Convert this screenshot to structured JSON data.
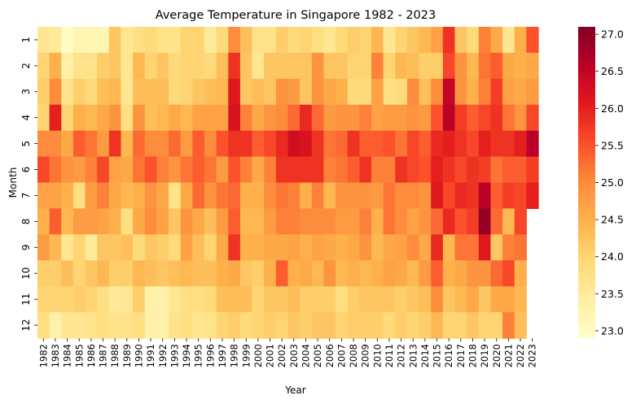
{
  "chart_data": {
    "type": "heatmap",
    "title": "Average Temperature in Singapore 1982 - 2023",
    "xlabel": "Year",
    "ylabel": "Month",
    "x": [
      "1982",
      "1983",
      "1984",
      "1985",
      "1986",
      "1987",
      "1988",
      "1989",
      "1990",
      "1991",
      "1992",
      "1993",
      "1994",
      "1995",
      "1996",
      "1997",
      "1998",
      "1999",
      "2000",
      "2001",
      "2002",
      "2003",
      "2004",
      "2005",
      "2006",
      "2007",
      "2008",
      "2009",
      "2010",
      "2011",
      "2012",
      "2013",
      "2014",
      "2015",
      "2016",
      "2017",
      "2018",
      "2019",
      "2020",
      "2021",
      "2022",
      "2023"
    ],
    "y": [
      "1",
      "2",
      "3",
      "4",
      "5",
      "6",
      "7",
      "8",
      "9",
      "10",
      "11",
      "12"
    ],
    "colorbar": {
      "min": 22.9,
      "max": 27.1,
      "ticks": [
        "23.0",
        "23.5",
        "24.0",
        "24.5",
        "25.0",
        "25.5",
        "26.0",
        "26.5",
        "27.0"
      ],
      "colormap": "YlOrRd",
      "colors": [
        "#ffffcc",
        "#ffeda0",
        "#fed976",
        "#feb24c",
        "#fd8d3c",
        "#fc4e2a",
        "#e31a1c",
        "#bd0026",
        "#800026"
      ]
    },
    "values": [
      [
        23.6,
        23.5,
        23.0,
        23.2,
        23.2,
        23.2,
        24.2,
        23.6,
        23.8,
        23.9,
        23.7,
        23.7,
        24.0,
        24.0,
        23.5,
        23.9,
        25.0,
        24.3,
        23.7,
        23.7,
        24.1,
        23.9,
        24.0,
        23.8,
        23.6,
        23.9,
        24.1,
        24.0,
        24.4,
        23.6,
        24.0,
        24.2,
        24.4,
        24.7,
        25.8,
        24.2,
        23.9,
        25.1,
        24.6,
        23.6,
        24.5,
        25.5
      ],
      [
        24.0,
        24.5,
        23.3,
        23.7,
        23.7,
        24.1,
        24.2,
        23.6,
        24.4,
        24.0,
        24.2,
        23.9,
        24.0,
        24.0,
        23.9,
        24.3,
        25.8,
        24.2,
        23.6,
        24.2,
        24.2,
        24.2,
        24.2,
        24.9,
        24.2,
        24.2,
        24.0,
        24.0,
        25.1,
        24.0,
        24.4,
        24.3,
        24.1,
        24.1,
        25.6,
        24.9,
        24.4,
        25.2,
        25.4,
        24.6,
        24.5,
        24.6
      ],
      [
        24.1,
        25.0,
        23.7,
        24.1,
        23.9,
        24.3,
        24.4,
        23.6,
        24.3,
        24.3,
        24.3,
        23.9,
        24.0,
        24.2,
        24.3,
        24.4,
        26.1,
        24.2,
        24.3,
        24.2,
        24.9,
        24.8,
        24.2,
        24.9,
        24.6,
        24.5,
        23.9,
        23.9,
        24.7,
        23.8,
        23.9,
        25.0,
        24.3,
        25.0,
        26.5,
        24.9,
        24.5,
        25.1,
        25.7,
        24.7,
        24.6,
        24.8
      ],
      [
        24.0,
        26.0,
        24.0,
        24.5,
        24.4,
        24.6,
        24.9,
        23.8,
        24.9,
        24.3,
        24.4,
        24.6,
        24.4,
        24.7,
        24.7,
        24.7,
        26.2,
        25.1,
        24.6,
        24.9,
        25.0,
        25.3,
        25.9,
        25.3,
        24.8,
        24.9,
        24.9,
        25.1,
        24.7,
        24.8,
        24.8,
        24.9,
        24.8,
        25.5,
        26.6,
        25.7,
        25.4,
        25.6,
        25.8,
        25.2,
        24.9,
        25.6
      ],
      [
        25.0,
        25.0,
        24.6,
        25.4,
        25.2,
        24.8,
        25.8,
        24.4,
        25.3,
        25.0,
        25.0,
        25.3,
        24.8,
        25.4,
        25.0,
        25.5,
        25.8,
        25.8,
        25.4,
        25.6,
        25.9,
        26.3,
        26.2,
        25.8,
        25.2,
        25.3,
        25.8,
        25.4,
        25.4,
        25.5,
        25.2,
        25.6,
        25.4,
        25.9,
        26.0,
        25.8,
        25.6,
        26.0,
        25.8,
        25.8,
        26.0,
        26.6
      ],
      [
        25.6,
        25.2,
        24.9,
        24.8,
        25.1,
        25.6,
        24.7,
        24.6,
        25.2,
        25.5,
        25.1,
        24.9,
        25.2,
        25.4,
        25.2,
        24.8,
        25.5,
        25.1,
        24.6,
        25.1,
        25.8,
        25.8,
        25.8,
        25.8,
        25.1,
        25.2,
        25.4,
        25.8,
        25.1,
        25.1,
        25.8,
        25.6,
        25.5,
        26.0,
        25.8,
        25.6,
        25.8,
        25.7,
        25.2,
        25.4,
        25.4,
        25.7
      ],
      [
        24.7,
        24.7,
        24.5,
        23.8,
        24.8,
        25.1,
        24.6,
        24.4,
        24.5,
        24.9,
        24.6,
        23.7,
        24.6,
        25.3,
        24.9,
        25.2,
        25.3,
        24.5,
        24.5,
        25.0,
        25.2,
        25.1,
        24.5,
        25.1,
        24.4,
        24.9,
        24.9,
        24.9,
        24.8,
        25.2,
        25.0,
        25.0,
        24.9,
        26.1,
        25.6,
        25.9,
        25.8,
        26.6,
        25.4,
        25.7,
        25.6,
        26.0
      ],
      [
        24.5,
        25.4,
        24.4,
        24.8,
        24.8,
        24.7,
        24.5,
        23.8,
        24.6,
        25.0,
        24.7,
        24.2,
        24.9,
        24.6,
        24.3,
        24.8,
        25.4,
        24.4,
        24.4,
        24.8,
        25.1,
        25.1,
        25.0,
        25.0,
        25.0,
        24.8,
        24.8,
        25.1,
        24.5,
        25.2,
        25.0,
        24.7,
        24.9,
        25.3,
        25.9,
        25.5,
        25.7,
        26.9,
        25.3,
        24.4,
        25.6,
        null
      ],
      [
        24.8,
        24.4,
        23.6,
        24.0,
        23.5,
        24.2,
        24.2,
        24.3,
        23.9,
        24.2,
        24.1,
        23.9,
        24.7,
        24.3,
        24.0,
        24.6,
        25.8,
        24.5,
        24.5,
        24.6,
        24.6,
        24.7,
        24.5,
        24.7,
        24.6,
        24.5,
        24.6,
        24.9,
        24.4,
        24.6,
        24.7,
        25.0,
        24.6,
        25.9,
        24.4,
        25.2,
        25.2,
        26.1,
        24.2,
        25.1,
        25.2,
        null
      ],
      [
        24.1,
        24.1,
        24.3,
        24.0,
        24.2,
        24.4,
        24.1,
        24.1,
        24.4,
        24.3,
        24.2,
        24.3,
        24.4,
        24.3,
        24.3,
        24.5,
        24.6,
        24.2,
        24.1,
        24.5,
        25.4,
        24.5,
        24.6,
        24.4,
        24.9,
        24.4,
        24.5,
        24.4,
        24.5,
        24.7,
        24.6,
        24.4,
        24.8,
        25.4,
        24.5,
        24.6,
        24.9,
        24.9,
        25.3,
        25.6,
        24.5,
        null
      ],
      [
        24.0,
        24.0,
        24.0,
        24.1,
        24.0,
        23.8,
        23.5,
        23.6,
        24.1,
        23.3,
        23.3,
        23.6,
        23.8,
        23.8,
        23.9,
        24.3,
        24.3,
        24.3,
        24.0,
        24.2,
        24.2,
        24.3,
        24.1,
        24.1,
        24.1,
        23.8,
        24.1,
        24.2,
        24.2,
        24.2,
        24.1,
        24.2,
        24.3,
        25.0,
        24.2,
        24.4,
        24.6,
        24.2,
        24.6,
        24.6,
        24.4,
        null
      ],
      [
        23.8,
        23.3,
        23.6,
        23.6,
        23.7,
        23.8,
        23.7,
        23.7,
        23.8,
        23.3,
        23.3,
        23.7,
        23.8,
        23.6,
        23.7,
        24.0,
        24.1,
        23.9,
        24.0,
        24.1,
        24.0,
        24.2,
        24.1,
        24.2,
        24.2,
        24.0,
        24.1,
        24.1,
        24.1,
        23.9,
        24.1,
        24.0,
        24.1,
        24.4,
        24.0,
        24.0,
        24.2,
        24.0,
        24.0,
        25.1,
        24.3,
        null
      ]
    ]
  }
}
